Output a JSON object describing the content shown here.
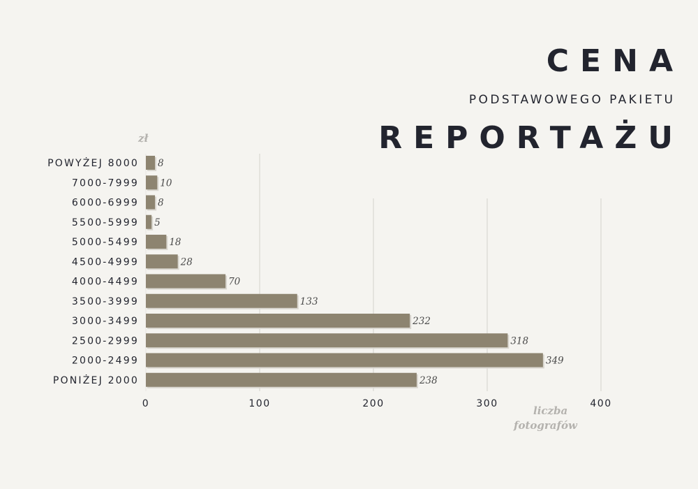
{
  "title": {
    "line1": "CENA",
    "line2": "PODSTAWOWEGO PAKIETU",
    "line3": "REPORTAŻU"
  },
  "colors": {
    "background": "#f5f4f0",
    "bar": "#8d8470",
    "title": "#22242e",
    "muted": "#b4b2ae",
    "grid": "#d4d2cd"
  },
  "chart_data": {
    "type": "bar",
    "orientation": "horizontal",
    "categories": [
      "POWYŻEJ 8000",
      "7000-7999",
      "6000-6999",
      "5500-5999",
      "5000-5499",
      "4500-4999",
      "4000-4499",
      "3500-3999",
      "3000-3499",
      "2500-2999",
      "2000-2499",
      "PONIŻEJ 2000"
    ],
    "values": [
      8,
      10,
      8,
      5,
      18,
      28,
      70,
      133,
      232,
      318,
      349,
      238
    ],
    "ylabel": "zł",
    "xlabel_lines": [
      "liczba",
      "fotografów"
    ],
    "xlim": [
      0,
      400
    ],
    "xticks": [
      "0",
      "100",
      "200",
      "300",
      "400"
    ],
    "grid": "vertical"
  }
}
